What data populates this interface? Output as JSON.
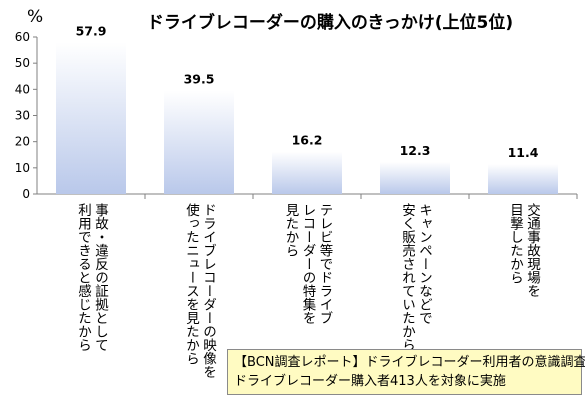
{
  "chart_data": {
    "type": "bar",
    "title": "ドライブレコーダーの購入のきっかけ(上位5位)",
    "unit_label": "%",
    "categories": [
      "事故・違反の証拠として\n利用できると感じたから",
      "ドライブレコーダーの映像を\n使ったニュースを見たから",
      "テレビ等でドライブ\nレコーダーの特集を\n見たから",
      "キャンペーンなどで\n安く販売されていたから",
      "交通事故現場を\n目撃したから"
    ],
    "values": [
      57.9,
      39.5,
      16.2,
      12.3,
      11.4
    ],
    "data_labels": [
      "57.9",
      "39.5",
      "16.2",
      "12.3",
      "11.4"
    ],
    "ylim": [
      0,
      60
    ],
    "yticks": [
      "0",
      "10",
      "20",
      "30",
      "40",
      "50",
      "60"
    ],
    "grid": false,
    "legend": "none",
    "bar_gradient": [
      "#ffffff",
      "#b9c8ea"
    ]
  },
  "note": {
    "line1": "【BCN調査レポート】ドライブレコーダー利用者の意識調査",
    "line2": "ドライブレコーダー購入者413人を対象に実施"
  }
}
